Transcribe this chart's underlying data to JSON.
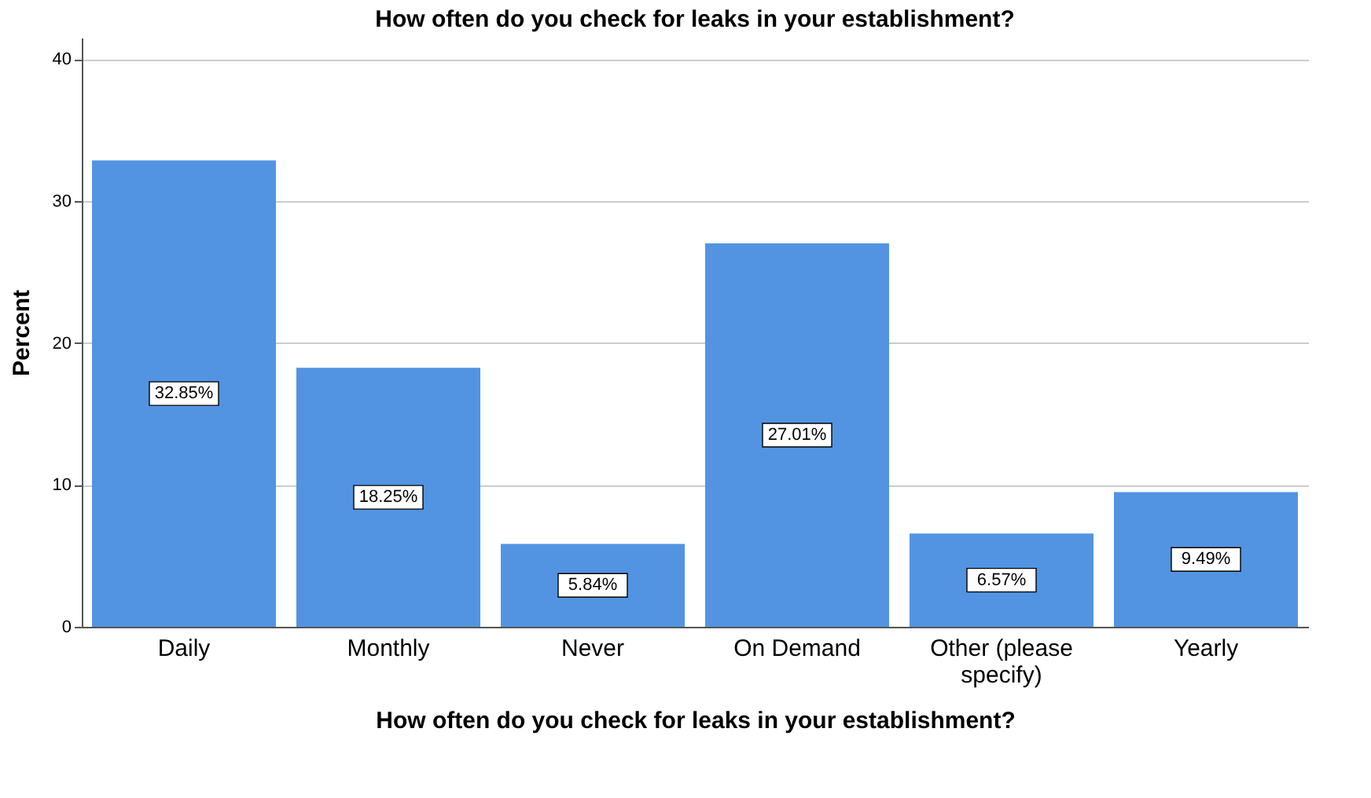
{
  "chart_data": {
    "type": "bar",
    "title": "How often do you check for leaks in your establishment?",
    "xlabel": "How often do you check for leaks in your establishment?",
    "ylabel": "Percent",
    "categories": [
      "Daily",
      "Monthly",
      "Never",
      "On Demand",
      "Other (please specify)",
      "Yearly"
    ],
    "values": [
      32.85,
      18.25,
      5.84,
      27.01,
      6.57,
      9.49
    ],
    "value_labels": [
      "32.85%",
      "18.25%",
      "5.84%",
      "27.01%",
      "6.57%",
      "9.49%"
    ],
    "color": "#5294e2",
    "ylim": [
      0,
      41.5
    ],
    "yticks": [
      0,
      10,
      20,
      30,
      40
    ],
    "grid": "y"
  }
}
